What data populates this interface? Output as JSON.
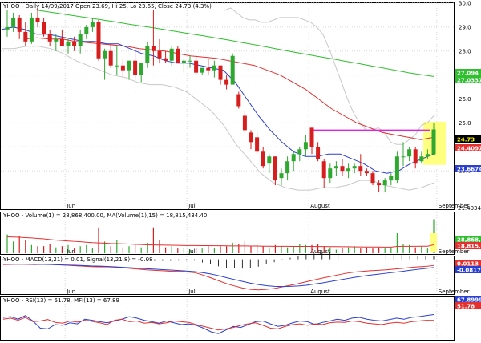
{
  "chart_data": [
    {
      "type": "candlestick",
      "panel": "price",
      "title": "YHOO - Daily 14/09/2017 Open 23.69, Hi 25, Lo 23.65, Close 24.73 (4.3%)",
      "y_ticks": [
        "30.0",
        "29.0",
        "28.0",
        "27.0",
        "26.0",
        "25.0",
        "24.0",
        "23.0"
      ],
      "ylim": [
        21.4,
        30.0
      ],
      "min_label": "21.4034",
      "x_labels": [
        "Jun",
        "Jul",
        "August",
        "September"
      ],
      "right_labels": [
        {
          "text": "27.094",
          "color": "#2fbf2f",
          "value": 27.094
        },
        {
          "text": "27.0337",
          "color": "#2fbf2f",
          "value": 27.0337
        },
        {
          "text": "24.73",
          "color": "#ffff00",
          "value": 24.73
        },
        {
          "text": "24.4097",
          "color": "#e53030",
          "value": 24.4097
        },
        {
          "text": "23.6674",
          "color": "#2a3fd0",
          "value": 23.6674
        }
      ],
      "candles": [
        [
          28.9,
          29.7,
          28.6,
          29.0
        ],
        [
          29.0,
          29.6,
          28.8,
          29.4
        ],
        [
          29.4,
          29.5,
          28.5,
          28.8
        ],
        [
          28.8,
          29.2,
          28.2,
          28.4
        ],
        [
          28.4,
          29.6,
          28.3,
          29.4
        ],
        [
          29.4,
          29.8,
          29.0,
          29.2
        ],
        [
          29.2,
          29.4,
          28.6,
          28.7
        ],
        [
          28.7,
          28.9,
          28.2,
          28.4
        ],
        [
          28.4,
          28.7,
          28.0,
          28.5
        ],
        [
          28.5,
          28.9,
          28.2,
          28.2
        ],
        [
          28.2,
          28.5,
          27.9,
          28.4
        ],
        [
          28.4,
          28.6,
          28.0,
          28.2
        ],
        [
          28.2,
          28.9,
          27.9,
          28.7
        ],
        [
          28.7,
          29.1,
          28.5,
          29.0
        ],
        [
          29.0,
          29.4,
          28.8,
          29.2
        ],
        [
          29.2,
          29.3,
          27.6,
          27.7
        ],
        [
          27.7,
          28.1,
          26.8,
          28.0
        ],
        [
          28.0,
          28.3,
          27.3,
          27.4
        ],
        [
          27.4,
          28.2,
          27.0,
          27.4
        ],
        [
          27.4,
          27.7,
          26.9,
          27.2
        ],
        [
          27.2,
          27.6,
          26.8,
          27.6
        ],
        [
          27.6,
          28.0,
          26.8,
          27.0
        ],
        [
          27.0,
          27.5,
          26.7,
          27.5
        ],
        [
          27.5,
          28.4,
          27.3,
          28.2
        ],
        [
          28.2,
          29.7,
          27.4,
          28.0
        ],
        [
          28.0,
          28.5,
          27.5,
          27.7
        ],
        [
          27.7,
          28.0,
          27.5,
          27.6
        ],
        [
          27.6,
          28.2,
          27.4,
          28.1
        ],
        [
          28.1,
          28.2,
          27.5,
          27.5
        ],
        [
          27.5,
          27.7,
          27.1,
          27.6
        ],
        [
          27.6,
          27.8,
          27.3,
          27.6
        ],
        [
          27.6,
          27.8,
          27.0,
          27.1
        ],
        [
          27.1,
          27.3,
          27.0,
          27.3
        ],
        [
          27.3,
          27.7,
          27.0,
          27.2
        ],
        [
          27.2,
          27.6,
          26.9,
          27.4
        ],
        [
          27.4,
          27.4,
          26.6,
          26.8
        ],
        [
          26.8,
          27.0,
          26.4,
          26.6
        ],
        [
          26.6,
          27.9,
          26.6,
          27.8
        ],
        [
          26.2,
          26.3,
          25.6,
          25.7
        ],
        [
          25.3,
          25.5,
          24.6,
          24.7
        ],
        [
          24.6,
          24.7,
          23.9,
          24.2
        ],
        [
          24.4,
          24.6,
          23.7,
          23.8
        ],
        [
          23.8,
          24.0,
          23.1,
          23.2
        ],
        [
          23.3,
          23.7,
          22.9,
          23.6
        ],
        [
          23.6,
          23.6,
          22.4,
          22.6
        ],
        [
          22.7,
          23.1,
          22.4,
          22.9
        ],
        [
          22.9,
          23.6,
          22.6,
          23.4
        ],
        [
          23.4,
          23.8,
          23.0,
          23.7
        ],
        [
          23.7,
          24.0,
          23.4,
          23.9
        ],
        [
          23.9,
          24.5,
          23.6,
          24.2
        ],
        [
          24.8,
          24.8,
          23.7,
          24.0
        ],
        [
          24.0,
          24.2,
          23.4,
          23.5
        ],
        [
          23.4,
          23.5,
          22.3,
          22.7
        ],
        [
          22.7,
          23.3,
          22.5,
          23.1
        ],
        [
          23.1,
          23.4,
          22.8,
          23.2
        ],
        [
          23.2,
          23.5,
          22.8,
          23.0
        ],
        [
          23.0,
          23.3,
          22.7,
          23.1
        ],
        [
          23.1,
          23.3,
          22.9,
          23.2
        ],
        [
          23.2,
          23.7,
          22.8,
          23.0
        ],
        [
          23.0,
          23.1,
          22.8,
          22.9
        ],
        [
          22.9,
          23.0,
          22.4,
          22.5
        ],
        [
          22.5,
          22.6,
          22.1,
          22.4
        ],
        [
          22.4,
          22.7,
          22.1,
          22.6
        ],
        [
          22.6,
          22.9,
          22.4,
          22.8
        ],
        [
          22.6,
          23.8,
          22.5,
          23.6
        ],
        [
          23.6,
          24.2,
          23.2,
          23.6
        ],
        [
          23.6,
          24.0,
          23.4,
          23.9
        ],
        [
          23.9,
          24.0,
          23.1,
          23.3
        ],
        [
          23.4,
          23.8,
          23.3,
          23.6
        ],
        [
          23.6,
          23.9,
          23.5,
          23.7
        ],
        [
          23.69,
          25.0,
          23.65,
          24.73
        ]
      ],
      "sma_slow": [
        29.7,
        29.62,
        29.54,
        29.46,
        29.38,
        29.3,
        29.22,
        29.13,
        29.05,
        28.97,
        28.89,
        28.8,
        28.71,
        28.63,
        28.54,
        28.45,
        28.35,
        28.26,
        28.16,
        28.06,
        27.96,
        27.87,
        27.77,
        27.68,
        27.58,
        27.49,
        27.39,
        27.3,
        27.2,
        27.1,
        27.02,
        26.94
      ],
      "sma_mid": [
        28.5,
        28.55,
        28.5,
        28.5,
        28.4,
        28.35,
        28.3,
        28.25,
        28.2,
        28.1,
        28.05,
        28.0,
        27.9,
        27.8,
        27.75,
        27.7,
        27.6,
        27.5,
        27.4,
        27.2,
        27.0,
        26.7,
        26.4,
        26.0,
        25.6,
        25.3,
        25.0,
        24.8,
        24.6,
        24.5,
        24.4,
        24.3,
        24.4
      ],
      "sma_fast": [
        28.9,
        29.0,
        28.9,
        28.7,
        28.7,
        28.6,
        28.5,
        28.4,
        28.4,
        28.3,
        28.3,
        28.1,
        27.9,
        27.8,
        27.6,
        27.5,
        27.5,
        27.4,
        27.3,
        27.2,
        26.7,
        26.0,
        25.3,
        24.7,
        24.2,
        23.8,
        23.6,
        23.6,
        23.7,
        23.7,
        23.5,
        23.3,
        23.0,
        22.9,
        23.0,
        23.3,
        23.5,
        23.7
      ],
      "bb_upper": [
        29.7,
        29.8,
        29.6,
        29.4,
        29.3,
        29.3,
        29.2,
        29.2,
        29.3,
        29.4,
        29.4,
        29.4,
        29.4,
        29.3,
        29.2,
        29.0,
        28.7,
        28.1,
        27.4,
        26.7,
        26.0,
        25.4,
        25.0,
        24.7,
        24.7,
        24.8,
        24.6,
        24.2,
        24.1,
        24.1,
        24.3,
        24.5,
        24.9,
        25.0,
        25.3
      ],
      "bb_lower": [
        28.1,
        28.1,
        28.2,
        28.2,
        28.1,
        27.9,
        27.6,
        27.4,
        27.2,
        27.0,
        26.9,
        26.7,
        26.6,
        26.6,
        26.5,
        26.3,
        25.9,
        25.5,
        24.9,
        24.1,
        23.5,
        22.9,
        22.5,
        22.3,
        22.2,
        22.2,
        22.3,
        22.3,
        22.4,
        22.6,
        22.6,
        22.4,
        22.3,
        22.2,
        22.3,
        22.5
      ],
      "resistance_line": 24.7
    },
    {
      "type": "bar",
      "panel": "volume",
      "title": "YHOO - Volume(1) = 28,868,400.00, MA(Volume(1),15) = 18,815,434.40",
      "series_names": [
        "Volume(1)",
        "MA(Volume(1),15)"
      ],
      "right_labels": [
        {
          "text": "28,868,40",
          "color": "#2fbf2f"
        },
        {
          "text": "18,815,43",
          "color": "#e53030"
        }
      ],
      "values": [
        16,
        10,
        15,
        11,
        7,
        6,
        6,
        8,
        5,
        6,
        7,
        4,
        6,
        7,
        4,
        22,
        10,
        6,
        11,
        5,
        6,
        8,
        5,
        9,
        22,
        11,
        5,
        6,
        4,
        4,
        3,
        5,
        4,
        6,
        4,
        6,
        6,
        9,
        8,
        10,
        6,
        7,
        6,
        5,
        7,
        6,
        5,
        6,
        8,
        7,
        7,
        8,
        6,
        5,
        3,
        4,
        5,
        6,
        4,
        5,
        4,
        5,
        4,
        5,
        17,
        8,
        7,
        5,
        6,
        4,
        29
      ],
      "ma": [
        14,
        13.8,
        13.6,
        13.3,
        13.0,
        12.6,
        12.3,
        11.7,
        11.2,
        10.8,
        10.4,
        10.1,
        9.8,
        9.4,
        9.0,
        8.8,
        8.6,
        8.3,
        8.2,
        8.0,
        7.8,
        7.6,
        7.4,
        7.2,
        7.1,
        7.0,
        6.9,
        6.8,
        6.7,
        6.6,
        6.6,
        6.6,
        6.5,
        6.5,
        6.4,
        6.4,
        6.3,
        6.2,
        6.2,
        6.2,
        6.1,
        6.1,
        6.0,
        6.0,
        5.9,
        5.9,
        5.9,
        5.8,
        5.8,
        5.8,
        5.8,
        5.7,
        5.7,
        5.6,
        5.6,
        5.5,
        5.5,
        5.4,
        5.4,
        5.3,
        5.3,
        5.3,
        5.2,
        5.2,
        5.8,
        5.9,
        5.9,
        5.9,
        6.0,
        6.0,
        7.2
      ]
    },
    {
      "type": "line",
      "panel": "macd",
      "title": "YHOO - MACD(13,21) = 0.01, Signal(13,21,8) = -0.08",
      "series_names": [
        "MACD(13,21)",
        "Signal(13,21,8)"
      ],
      "right_labels": [
        {
          "text": "0.0113",
          "color": "#e53030"
        },
        {
          "text": "-0.08171",
          "color": "#2a3fd0"
        }
      ],
      "ylim": [
        -1.2,
        0.3
      ],
      "macd": [
        0.05,
        0.06,
        0.07,
        0.06,
        0.05,
        0.07,
        0.06,
        0.04,
        0.02,
        0.0,
        -0.02,
        -0.04,
        -0.05,
        -0.05,
        -0.06,
        -0.09,
        -0.12,
        -0.15,
        -0.18,
        -0.2,
        -0.22,
        -0.24,
        -0.25,
        -0.27,
        -0.3,
        -0.4,
        -0.52,
        -0.65,
        -0.78,
        -0.88,
        -0.97,
        -1.03,
        -1.05,
        -1.03,
        -0.99,
        -0.92,
        -0.85,
        -0.78,
        -0.7,
        -0.62,
        -0.54,
        -0.47,
        -0.4,
        -0.33,
        -0.28,
        -0.25,
        -0.22,
        -0.2,
        -0.18,
        -0.15,
        -0.12,
        -0.08,
        -0.05,
        -0.03,
        0.01
      ],
      "signal": [
        0.07,
        0.07,
        0.07,
        0.07,
        0.06,
        0.06,
        0.05,
        0.04,
        0.03,
        0.02,
        0.01,
        -0.01,
        -0.02,
        -0.03,
        -0.05,
        -0.07,
        -0.09,
        -0.11,
        -0.13,
        -0.15,
        -0.17,
        -0.19,
        -0.21,
        -0.23,
        -0.26,
        -0.3,
        -0.36,
        -0.43,
        -0.52,
        -0.6,
        -0.68,
        -0.76,
        -0.82,
        -0.87,
        -0.9,
        -0.91,
        -0.9,
        -0.88,
        -0.85,
        -0.8,
        -0.75,
        -0.69,
        -0.63,
        -0.57,
        -0.51,
        -0.46,
        -0.41,
        -0.37,
        -0.33,
        -0.29,
        -0.25,
        -0.2,
        -0.16,
        -0.12,
        -0.08
      ]
    },
    {
      "type": "line",
      "panel": "rsi",
      "title": "YHOO - RSI(13) = 51.78, MFI(13) = 67.89",
      "series_names": [
        "RSI(13)",
        "MFI(13)"
      ],
      "right_labels": [
        {
          "text": "67.8999",
          "color": "#2a3fd0"
        },
        {
          "text": "51.78",
          "color": "#e53030"
        }
      ],
      "ylim": [
        0,
        100
      ],
      "rsi": [
        55,
        58,
        52,
        60,
        48,
        50,
        54,
        46,
        44,
        50,
        47,
        52,
        49,
        45,
        40,
        52,
        55,
        48,
        50,
        44,
        46,
        42,
        45,
        50,
        48,
        46,
        40,
        35,
        30,
        25,
        28,
        32,
        38,
        42,
        45,
        38,
        30,
        28,
        35,
        40,
        42,
        38,
        42,
        40,
        45,
        47,
        46,
        50,
        48,
        44,
        42,
        40,
        44,
        46,
        44,
        48,
        50,
        52,
        51.78
      ],
      "mfi": [
        60,
        62,
        55,
        65,
        50,
        30,
        28,
        40,
        38,
        45,
        42,
        55,
        52,
        48,
        45,
        50,
        55,
        62,
        58,
        52,
        48,
        44,
        50,
        45,
        40,
        42,
        38,
        30,
        20,
        15,
        25,
        35,
        32,
        40,
        48,
        50,
        42,
        35,
        38,
        45,
        50,
        48,
        40,
        46,
        50,
        55,
        52,
        58,
        60,
        55,
        52,
        50,
        54,
        58,
        55,
        60,
        62,
        65,
        67.89
      ]
    }
  ]
}
